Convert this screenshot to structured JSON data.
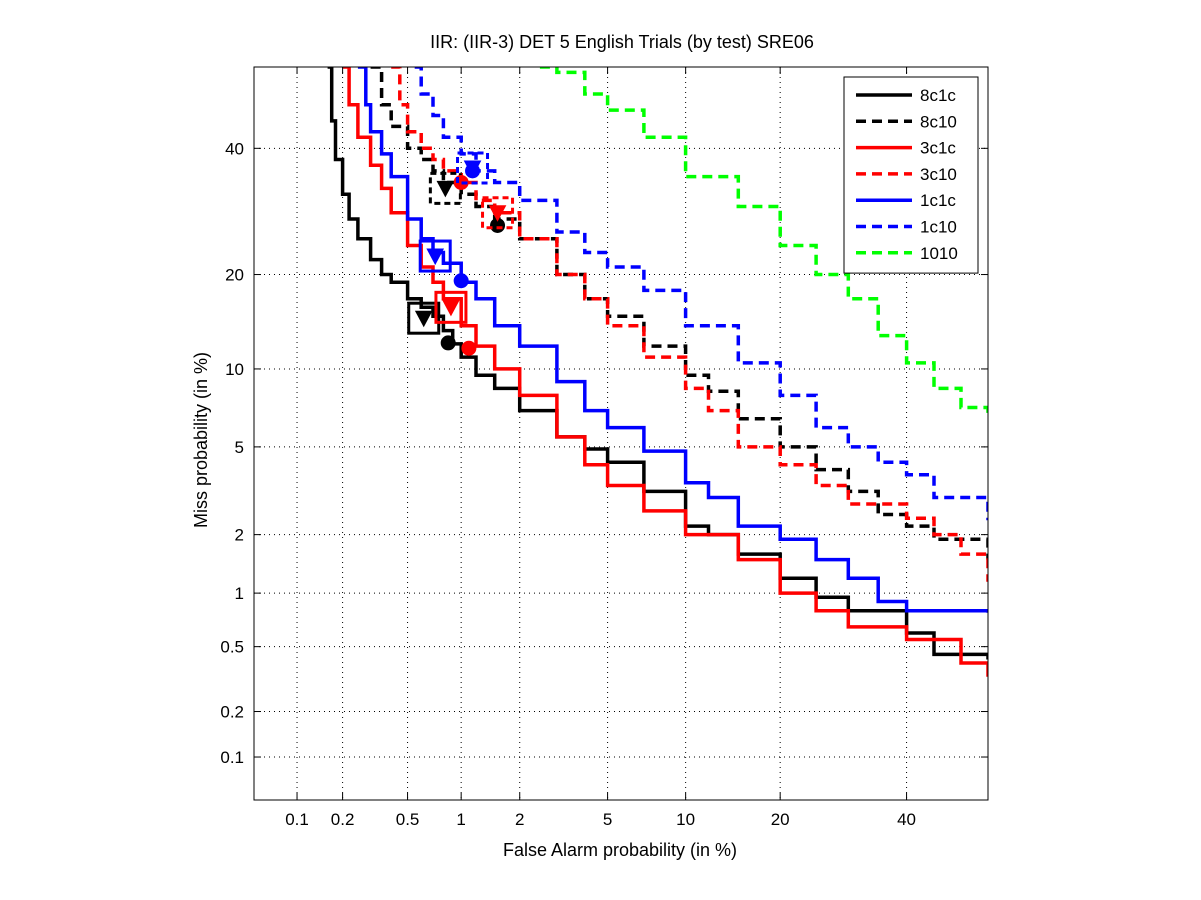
{
  "chart_data": {
    "type": "line",
    "title": "IIR: (IIR-3) DET 5 English Trials (by test) SRE06",
    "xlabel": "False Alarm probability (in %)",
    "ylabel": "Miss probability (in %)",
    "scale": "normal-deviate (probit) on both axes",
    "xlim": [
      0.05,
      55
    ],
    "ylim": [
      0.05,
      55
    ],
    "x_ticks": [
      0.1,
      0.2,
      0.5,
      1,
      2,
      5,
      10,
      20,
      40
    ],
    "y_ticks": [
      0.1,
      0.2,
      0.5,
      1,
      2,
      5,
      10,
      20,
      40
    ],
    "x_tick_labels": [
      "0.1",
      "0.2",
      "0.5",
      "1",
      "2",
      "5",
      "10",
      "20",
      "40"
    ],
    "y_tick_labels": [
      "0.1",
      "0.2",
      "0.5",
      "1",
      "2",
      "5",
      "10",
      "20",
      "40"
    ],
    "grid": true,
    "legend_position": "top-right",
    "series": [
      {
        "name": "8c1c",
        "color": "#000000",
        "dash": "solid",
        "points": [
          [
            0.16,
            55
          ],
          [
            0.17,
            45
          ],
          [
            0.18,
            38
          ],
          [
            0.2,
            32
          ],
          [
            0.22,
            28
          ],
          [
            0.25,
            25
          ],
          [
            0.3,
            22
          ],
          [
            0.35,
            20
          ],
          [
            0.4,
            19
          ],
          [
            0.5,
            17
          ],
          [
            0.6,
            16
          ],
          [
            0.7,
            15
          ],
          [
            0.8,
            13.5
          ],
          [
            0.9,
            12.2
          ],
          [
            1.0,
            11
          ],
          [
            1.2,
            9.5
          ],
          [
            1.5,
            8.5
          ],
          [
            2,
            7
          ],
          [
            3,
            5.5
          ],
          [
            4,
            4.9
          ],
          [
            5,
            4.3
          ],
          [
            7,
            3.2
          ],
          [
            10,
            2.2
          ],
          [
            12,
            2.0
          ],
          [
            15,
            1.6
          ],
          [
            20,
            1.2
          ],
          [
            25,
            0.95
          ],
          [
            30,
            0.8
          ],
          [
            40,
            0.6
          ],
          [
            45,
            0.45
          ],
          [
            55,
            0.42
          ]
        ],
        "actual_dcf": [
          0.85,
          12.3
        ],
        "min_dcf": [
          0.62,
          14.8
        ],
        "eer_box": [
          0.62,
          14.8
        ]
      },
      {
        "name": "8c10",
        "color": "#000000",
        "dash": "dashed",
        "points": [
          [
            0.3,
            55
          ],
          [
            0.35,
            48
          ],
          [
            0.4,
            44
          ],
          [
            0.5,
            40
          ],
          [
            0.6,
            38
          ],
          [
            0.7,
            36
          ],
          [
            0.8,
            34
          ],
          [
            1.0,
            32
          ],
          [
            1.2,
            30
          ],
          [
            1.5,
            28
          ],
          [
            2,
            25
          ],
          [
            3,
            20
          ],
          [
            4,
            17
          ],
          [
            5,
            15
          ],
          [
            7,
            12
          ],
          [
            10,
            9.5
          ],
          [
            12,
            8.3
          ],
          [
            15,
            6.5
          ],
          [
            20,
            5
          ],
          [
            25,
            4
          ],
          [
            30,
            3.2
          ],
          [
            35,
            2.5
          ],
          [
            40,
            2.2
          ],
          [
            45,
            1.9
          ],
          [
            55,
            1.5
          ]
        ],
        "actual_dcf": [
          1.55,
          27
        ],
        "min_dcf": [
          0.82,
          33
        ],
        "eer_box": [
          0.82,
          33
        ]
      },
      {
        "name": "3c1c",
        "color": "#ff0000",
        "dash": "solid",
        "points": [
          [
            0.2,
            55
          ],
          [
            0.22,
            48
          ],
          [
            0.25,
            42
          ],
          [
            0.3,
            37
          ],
          [
            0.35,
            33
          ],
          [
            0.4,
            29
          ],
          [
            0.5,
            24
          ],
          [
            0.6,
            21
          ],
          [
            0.7,
            19
          ],
          [
            0.8,
            17
          ],
          [
            1.0,
            14
          ],
          [
            1.2,
            12
          ],
          [
            1.5,
            10
          ],
          [
            2,
            8
          ],
          [
            3,
            5.5
          ],
          [
            4,
            4.2
          ],
          [
            5,
            3.4
          ],
          [
            7,
            2.6
          ],
          [
            10,
            2.0
          ],
          [
            15,
            1.5
          ],
          [
            20,
            1.0
          ],
          [
            25,
            0.8
          ],
          [
            30,
            0.65
          ],
          [
            40,
            0.55
          ],
          [
            50,
            0.4
          ],
          [
            55,
            0.33
          ]
        ],
        "actual_dcf": [
          1.1,
          11.8
        ],
        "min_dcf": [
          0.88,
          16
        ],
        "eer_box": [
          0.88,
          16
        ]
      },
      {
        "name": "3c10",
        "color": "#ff0000",
        "dash": "dashed",
        "points": [
          [
            0.4,
            55
          ],
          [
            0.45,
            48
          ],
          [
            0.5,
            43
          ],
          [
            0.6,
            40
          ],
          [
            0.7,
            38
          ],
          [
            0.8,
            36
          ],
          [
            1.0,
            34
          ],
          [
            1.2,
            31
          ],
          [
            1.5,
            29
          ],
          [
            2,
            25
          ],
          [
            3,
            20
          ],
          [
            4,
            17
          ],
          [
            5,
            14
          ],
          [
            7,
            11
          ],
          [
            10,
            8.5
          ],
          [
            12,
            7
          ],
          [
            15,
            5
          ],
          [
            20,
            4.2
          ],
          [
            25,
            3.4
          ],
          [
            30,
            2.8
          ],
          [
            40,
            2.4
          ],
          [
            45,
            2.0
          ],
          [
            50,
            1.6
          ],
          [
            55,
            1.15
          ]
        ],
        "actual_dcf": [
          1.0,
          34
        ],
        "min_dcf": [
          1.55,
          29
        ],
        "eer_box": [
          1.55,
          29
        ]
      },
      {
        "name": "1c1c",
        "color": "#0000ff",
        "dash": "solid",
        "points": [
          [
            0.25,
            55
          ],
          [
            0.28,
            48
          ],
          [
            0.3,
            43
          ],
          [
            0.35,
            39
          ],
          [
            0.4,
            35
          ],
          [
            0.5,
            28
          ],
          [
            0.6,
            25
          ],
          [
            0.7,
            23
          ],
          [
            0.8,
            21.5
          ],
          [
            1.0,
            19
          ],
          [
            1.2,
            17
          ],
          [
            1.5,
            14
          ],
          [
            2,
            12
          ],
          [
            3,
            9
          ],
          [
            4,
            7
          ],
          [
            5,
            6
          ],
          [
            7,
            4.8
          ],
          [
            10,
            3.5
          ],
          [
            12,
            3.0
          ],
          [
            15,
            2.2
          ],
          [
            20,
            1.9
          ],
          [
            25,
            1.5
          ],
          [
            30,
            1.2
          ],
          [
            35,
            0.9
          ],
          [
            40,
            0.8
          ],
          [
            55,
            0.78
          ]
        ],
        "actual_dcf": [
          1.0,
          19.2
        ],
        "min_dcf": [
          0.72,
          22.5
        ],
        "eer_box": [
          0.72,
          22.5
        ]
      },
      {
        "name": "1c10",
        "color": "#0000ff",
        "dash": "dashed",
        "points": [
          [
            0.55,
            55
          ],
          [
            0.6,
            50
          ],
          [
            0.7,
            46
          ],
          [
            0.8,
            42
          ],
          [
            1.0,
            39
          ],
          [
            1.2,
            36
          ],
          [
            1.5,
            34
          ],
          [
            2,
            31
          ],
          [
            3,
            26
          ],
          [
            4,
            23
          ],
          [
            5,
            21
          ],
          [
            7,
            18
          ],
          [
            10,
            14
          ],
          [
            15,
            10.5
          ],
          [
            20,
            8
          ],
          [
            25,
            6
          ],
          [
            30,
            5
          ],
          [
            35,
            4.3
          ],
          [
            40,
            3.8
          ],
          [
            45,
            3.0
          ],
          [
            55,
            2.35
          ]
        ],
        "actual_dcf": [
          1.15,
          36
        ],
        "min_dcf": [
          1.15,
          36.5
        ],
        "eer_box": [
          1.15,
          36.5
        ]
      },
      {
        "name": "1010",
        "color": "#00ff00",
        "dash": "dashed",
        "points": [
          [
            2.5,
            55
          ],
          [
            3,
            54
          ],
          [
            4,
            50
          ],
          [
            5,
            47
          ],
          [
            7,
            42
          ],
          [
            10,
            35
          ],
          [
            15,
            30
          ],
          [
            20,
            24
          ],
          [
            25,
            20
          ],
          [
            30,
            17
          ],
          [
            35,
            13
          ],
          [
            40,
            10.5
          ],
          [
            45,
            8.5
          ],
          [
            50,
            7.2
          ],
          [
            55,
            6.6
          ]
        ]
      }
    ]
  }
}
